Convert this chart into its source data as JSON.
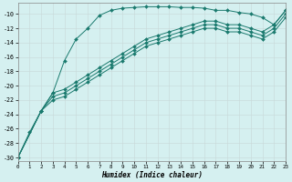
{
  "xlabel": "Humidex (Indice chaleur)",
  "background_color": "#d5f0f0",
  "line_color": "#1a7a6e",
  "xlim": [
    0,
    23
  ],
  "ylim": [
    -30.5,
    -8.5
  ],
  "yticks": [
    -10,
    -12,
    -14,
    -16,
    -18,
    -20,
    -22,
    -24,
    -26,
    -28,
    -30
  ],
  "xticks": [
    0,
    1,
    2,
    3,
    4,
    5,
    6,
    7,
    8,
    9,
    10,
    11,
    12,
    13,
    14,
    15,
    16,
    17,
    18,
    19,
    20,
    21,
    22,
    23
  ],
  "curve_x": [
    0,
    1,
    2,
    3,
    4,
    5,
    6,
    7,
    8,
    9,
    10,
    11,
    12,
    13,
    14,
    15,
    16,
    17,
    18,
    19,
    20,
    21,
    22,
    23
  ],
  "curve_y": [
    -30,
    -26.5,
    -23.5,
    -21.0,
    -16.5,
    -13.5,
    -12.0,
    -10.2,
    -9.5,
    -9.2,
    -9.1,
    -9.0,
    -9.0,
    -9.0,
    -9.1,
    -9.1,
    -9.2,
    -9.5,
    -9.5,
    -9.8,
    -10.0,
    -10.5,
    -11.5,
    -9.5
  ],
  "line1_x": [
    0,
    2,
    3,
    4,
    5,
    6,
    7,
    8,
    9,
    10,
    11,
    12,
    13,
    14,
    15,
    16,
    17,
    18,
    19,
    20,
    21,
    22,
    23
  ],
  "line1_y": [
    -30,
    -23.5,
    -21.0,
    -20.5,
    -19.5,
    -18.5,
    -17.5,
    -16.5,
    -15.5,
    -14.5,
    -13.5,
    -13.0,
    -12.5,
    -12.0,
    -11.5,
    -11.0,
    -11.0,
    -11.5,
    -11.5,
    -12.0,
    -12.5,
    -11.5,
    -9.5
  ],
  "line2_x": [
    0,
    2,
    3,
    4,
    5,
    6,
    7,
    8,
    9,
    10,
    11,
    12,
    13,
    14,
    15,
    16,
    17,
    18,
    19,
    20,
    21,
    22,
    23
  ],
  "line2_y": [
    -30,
    -23.5,
    -21.5,
    -21.0,
    -20.0,
    -19.0,
    -18.0,
    -17.0,
    -16.0,
    -15.0,
    -14.0,
    -13.5,
    -13.0,
    -12.5,
    -12.0,
    -11.5,
    -11.5,
    -12.0,
    -12.0,
    -12.5,
    -13.0,
    -12.0,
    -10.0
  ],
  "line3_x": [
    0,
    2,
    3,
    4,
    5,
    6,
    7,
    8,
    9,
    10,
    11,
    12,
    13,
    14,
    15,
    16,
    17,
    18,
    19,
    20,
    21,
    22,
    23
  ],
  "line3_y": [
    -30,
    -23.5,
    -22.0,
    -21.5,
    -20.5,
    -19.5,
    -18.5,
    -17.5,
    -16.5,
    -15.5,
    -14.5,
    -14.0,
    -13.5,
    -13.0,
    -12.5,
    -12.0,
    -12.0,
    -12.5,
    -12.5,
    -13.0,
    -13.5,
    -12.5,
    -10.5
  ]
}
